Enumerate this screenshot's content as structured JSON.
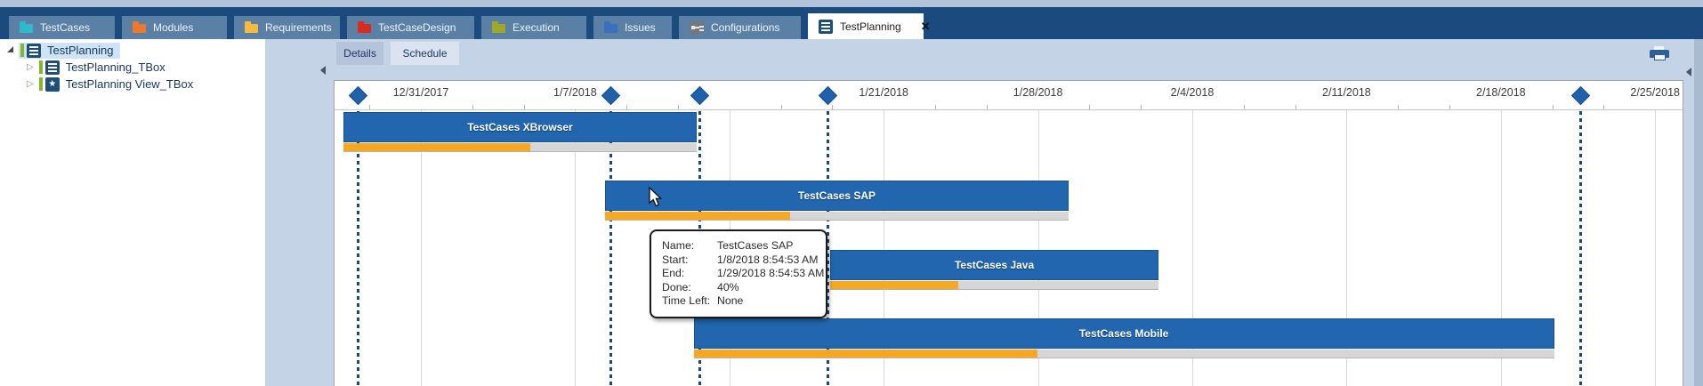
{
  "tabs": [
    {
      "label": "TestCases",
      "icon": "folder-icon",
      "icon_color": "#2fb9c9"
    },
    {
      "label": "Modules",
      "icon": "folder-icon",
      "icon_color": "#f0762b"
    },
    {
      "label": "Requirements",
      "icon": "folder-icon",
      "icon_color": "#f6ba3c"
    },
    {
      "label": "TestCaseDesign",
      "icon": "folder-icon",
      "icon_color": "#dc2a1e"
    },
    {
      "label": "Execution",
      "icon": "folder-icon",
      "icon_color": "#a2a727"
    },
    {
      "label": "Issues",
      "icon": "folder-icon",
      "icon_color": "#3c6fbe"
    },
    {
      "label": "Configurations",
      "icon": "plug-icon",
      "icon_color": "#74787e"
    },
    {
      "label": "TestPlanning",
      "icon": "list-doc-icon",
      "icon_color": "#1f4e79",
      "active": true,
      "close_icon": "✕"
    }
  ],
  "tree": {
    "items": [
      {
        "label": "TestPlanning",
        "icon": "list-doc-icon",
        "expanded": true,
        "selected": true
      },
      {
        "label": "TestPlanning_TBox",
        "icon": "list-doc-icon",
        "expanded": false,
        "collapsed_glyph": "▷"
      },
      {
        "label": "TestPlanning View_TBox",
        "icon": "star-doc-icon",
        "expanded": false,
        "collapsed_glyph": "▷",
        "star_glyph": "★"
      }
    ]
  },
  "view_tabs": [
    {
      "label": "Details",
      "active": false
    },
    {
      "label": "Schedule",
      "active": true
    }
  ],
  "tooltip": {
    "rows": [
      {
        "label": "Name:",
        "value": "TestCases SAP"
      },
      {
        "label": "Start:",
        "value": "1/8/2018 8:54:53 AM"
      },
      {
        "label": "End:",
        "value": "1/29/2018 8:54:53 AM"
      },
      {
        "label": "Done:",
        "value": "40%"
      },
      {
        "label": "Time Left:",
        "value": "None"
      }
    ]
  },
  "chart_data": {
    "type": "gantt",
    "title": "TestPlanning Schedule",
    "axis": {
      "origin_date": "2017-12-31",
      "weeks": 9,
      "grid": true,
      "tick_labels": [
        {
          "date": "2017-12-31",
          "label": "12/31/2017"
        },
        {
          "date": "2018-01-07",
          "label": "1/7/2018"
        },
        {
          "date": "2018-01-21",
          "label": "1/21/2018"
        },
        {
          "date": "2018-01-28",
          "label": "1/28/2018"
        },
        {
          "date": "2018-02-04",
          "label": "2/4/2018"
        },
        {
          "date": "2018-02-11",
          "label": "2/11/2018"
        },
        {
          "date": "2018-02-18",
          "label": "2/18/2018"
        },
        {
          "date": "2018-02-25",
          "label": "2/25/2018"
        }
      ]
    },
    "tasks": [
      {
        "name": "TestCases XBrowser",
        "start": "2017-12-27T12:00:00",
        "end": "2018-01-12T12:00:00",
        "done": 0.53
      },
      {
        "name": "TestCases SAP",
        "start": "2018-01-08T08:54:53",
        "end": "2018-01-29T08:54:53",
        "done": 0.4
      },
      {
        "name": "TestCases Java",
        "start": "2018-01-18T14:00:00",
        "end": "2018-02-02T11:00:00",
        "done": 0.39
      },
      {
        "name": "TestCases Mobile",
        "start": "2018-01-12T09:00:00",
        "end": "2018-02-20T10:00:00",
        "done": 0.4
      }
    ],
    "milestones": [
      "2017-12-28T03:00:00",
      "2018-01-08T14:00:00",
      "2018-01-12T15:00:00",
      "2018-01-18T11:00:00",
      "2018-02-21T14:00:00"
    ],
    "colors": {
      "bar": "#2166ae",
      "bar_border": "#17508c",
      "done": "#f6a822",
      "remaining": "#d6d6d6",
      "milestone": "#2061ac",
      "dotted_line": "#17497e",
      "grid": "#d9d9d9"
    }
  }
}
